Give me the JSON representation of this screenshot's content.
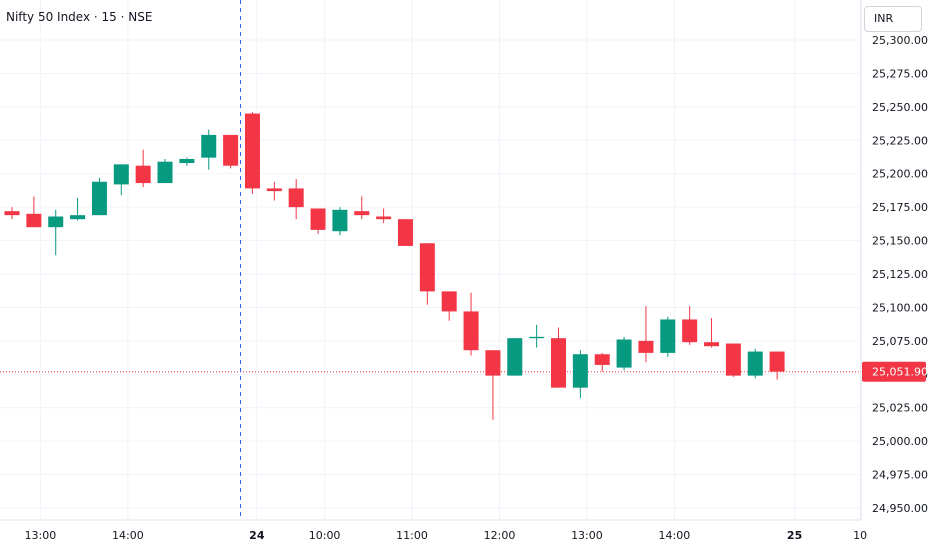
{
  "header": {
    "title": "Nifty 50 Index · 15 · NSE",
    "currency": "INR"
  },
  "price_tag": "25,051.90",
  "colors": {
    "up": "#089981",
    "down": "#f23645",
    "grid": "#f0f3fa",
    "axis_text": "#131722",
    "separator": "#2962ff"
  },
  "chart_data": {
    "type": "candlestick",
    "title": "Nifty 50 Index · 15 · NSE",
    "ylim": [
      24940,
      25316
    ],
    "y_ticks": [
      24950,
      24975,
      25000,
      25025,
      25050,
      25075,
      25100,
      25125,
      25150,
      25175,
      25200,
      25225,
      25250,
      25275,
      25300
    ],
    "y_tick_labels": [
      "24,950.00",
      "24,975.00",
      "25,000.00",
      "25,025.00",
      "25,050.00",
      "25,075.00",
      "25,100.00",
      "25,125.00",
      "25,150.00",
      "25,175.00",
      "25,200.00",
      "25,225.00",
      "25,250.00",
      "25,275.00",
      "25,300.00"
    ],
    "x_labels": [
      {
        "label": "13:00",
        "bar": 1.3,
        "bold": false
      },
      {
        "label": "14:00",
        "bar": 5.3,
        "bold": false
      },
      {
        "label": "24",
        "bar": 11.2,
        "bold": true
      },
      {
        "label": "10:00",
        "bar": 14.3,
        "bold": false
      },
      {
        "label": "11:00",
        "bar": 18.3,
        "bold": false
      },
      {
        "label": "12:00",
        "bar": 22.3,
        "bold": false
      },
      {
        "label": "13:00",
        "bar": 26.3,
        "bold": false
      },
      {
        "label": "14:00",
        "bar": 30.3,
        "bold": false
      },
      {
        "label": "25",
        "bar": 35.8,
        "bold": true
      },
      {
        "label": "10",
        "bar": 38.8,
        "bold": false
      }
    ],
    "session_break_after_bar": 10,
    "last_price": 25051.9,
    "grid": true,
    "candles": [
      {
        "o": 25172,
        "h": 25175,
        "l": 25166,
        "c": 25169
      },
      {
        "o": 25170,
        "h": 25183,
        "l": 25160,
        "c": 25160
      },
      {
        "o": 25160,
        "h": 25173,
        "l": 25139,
        "c": 25168
      },
      {
        "o": 25166,
        "h": 25182,
        "l": 25165,
        "c": 25169
      },
      {
        "o": 25169,
        "h": 25197,
        "l": 25169,
        "c": 25194
      },
      {
        "o": 25192,
        "h": 25207,
        "l": 25184,
        "c": 25207
      },
      {
        "o": 25206,
        "h": 25218,
        "l": 25190,
        "c": 25193
      },
      {
        "o": 25193,
        "h": 25211,
        "l": 25193,
        "c": 25209
      },
      {
        "o": 25208,
        "h": 25212,
        "l": 25206,
        "c": 25211
      },
      {
        "o": 25212,
        "h": 25233,
        "l": 25203,
        "c": 25229
      },
      {
        "o": 25229,
        "h": 25229,
        "l": 25204,
        "c": 25206
      },
      {
        "o": 25245,
        "h": 25246,
        "l": 25185,
        "c": 25189
      },
      {
        "o": 25189,
        "h": 25194,
        "l": 25180,
        "c": 25187
      },
      {
        "o": 25189,
        "h": 25196,
        "l": 25166,
        "c": 25175
      },
      {
        "o": 25174,
        "h": 25174,
        "l": 25155,
        "c": 25158
      },
      {
        "o": 25157,
        "h": 25175,
        "l": 25154,
        "c": 25173
      },
      {
        "o": 25172,
        "h": 25183,
        "l": 25166,
        "c": 25169
      },
      {
        "o": 25168,
        "h": 25174,
        "l": 25163,
        "c": 25166
      },
      {
        "o": 25166,
        "h": 25166,
        "l": 25146,
        "c": 25146
      },
      {
        "o": 25148,
        "h": 25148,
        "l": 25102,
        "c": 25112
      },
      {
        "o": 25112,
        "h": 25112,
        "l": 25090,
        "c": 25097
      },
      {
        "o": 25097,
        "h": 25111,
        "l": 25064,
        "c": 25068
      },
      {
        "o": 25068,
        "h": 25068,
        "l": 25016,
        "c": 25049
      },
      {
        "o": 25049,
        "h": 25077,
        "l": 25049,
        "c": 25077
      },
      {
        "o": 25077,
        "h": 25087,
        "l": 25070,
        "c": 25078
      },
      {
        "o": 25077,
        "h": 25085,
        "l": 25040,
        "c": 25040
      },
      {
        "o": 25040,
        "h": 25068,
        "l": 25032,
        "c": 25065
      },
      {
        "o": 25065,
        "h": 25066,
        "l": 25052,
        "c": 25057
      },
      {
        "o": 25055,
        "h": 25078,
        "l": 25053,
        "c": 25076
      },
      {
        "o": 25075,
        "h": 25101,
        "l": 25059,
        "c": 25066
      },
      {
        "o": 25066,
        "h": 25093,
        "l": 25063,
        "c": 25091
      },
      {
        "o": 25091,
        "h": 25101,
        "l": 25072,
        "c": 25074
      },
      {
        "o": 25074,
        "h": 25092,
        "l": 25070,
        "c": 25071
      },
      {
        "o": 25073,
        "h": 25073,
        "l": 25048,
        "c": 25049
      },
      {
        "o": 25049,
        "h": 25069,
        "l": 25047,
        "c": 25067
      },
      {
        "o": 25067,
        "h": 25067,
        "l": 25046,
        "c": 25052
      }
    ]
  }
}
